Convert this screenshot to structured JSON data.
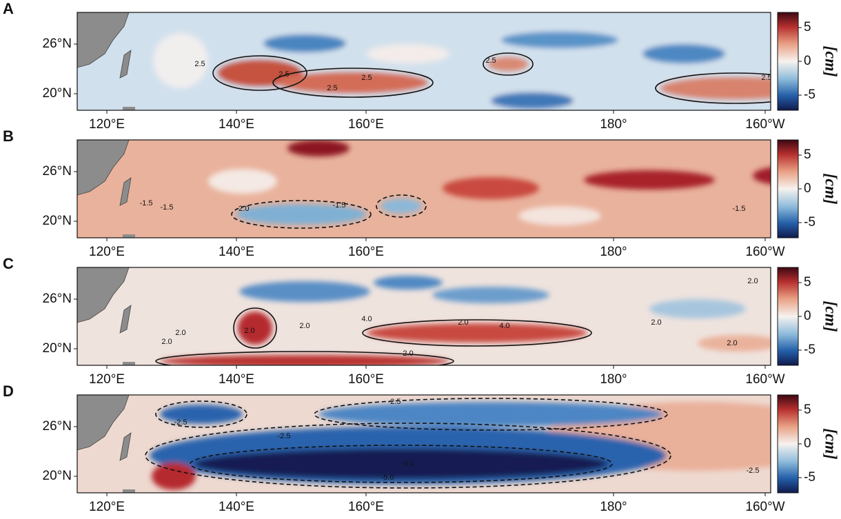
{
  "panels": [
    {
      "label": "A",
      "contour_labels": [
        "2.5",
        "2.5",
        "2.5",
        "2.5",
        "2.5",
        "2.5",
        "2.5"
      ]
    },
    {
      "label": "B",
      "contour_labels": [
        "-1.5",
        "-1.5",
        "-2.0",
        "-1.5",
        "-1.5"
      ]
    },
    {
      "label": "C",
      "contour_labels": [
        "2.0",
        "2.0",
        "2.0",
        "2.0",
        "4.0",
        "2.0",
        "4.0",
        "2.0",
        "2.0",
        "2.0",
        "2.0"
      ]
    },
    {
      "label": "D",
      "contour_labels": [
        "-2.5",
        "-2.5",
        "-2.5",
        "-5.0",
        "-5.0",
        "-2.5"
      ]
    }
  ],
  "lat_labels": [
    "26°N",
    "20°N"
  ],
  "lon_labels": [
    "120°E",
    "140°E",
    "160°E",
    "180°",
    "160°W"
  ],
  "colorbar": {
    "ticks": [
      "5",
      "0",
      "-5"
    ],
    "unit": "[cm]"
  }
}
